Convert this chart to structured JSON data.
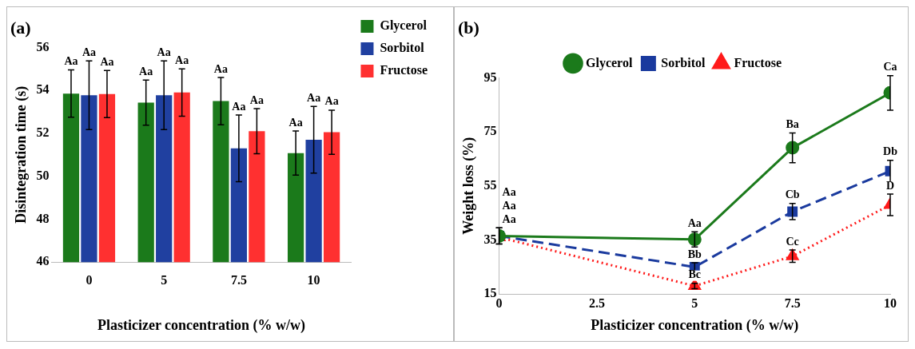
{
  "chart_data": [
    {
      "type": "bar",
      "title": "(a)",
      "xlabel": "Plasticizer concentration (% w/w)",
      "ylabel": "Disintegration time (s)",
      "categories": [
        "0",
        "5",
        "7.5",
        "10"
      ],
      "ylim": [
        46,
        56
      ],
      "yticks": [
        46,
        48,
        50,
        52,
        54,
        56
      ],
      "legend": "top right",
      "series": [
        {
          "name": "Glycerol",
          "color": "#1b7a1b",
          "values": [
            53.85,
            53.43,
            53.5,
            51.08
          ],
          "errors": [
            1.1,
            1.05,
            1.1,
            1.03
          ],
          "value_labels": [
            "Aa",
            "Aa",
            "Aa",
            "Aa"
          ]
        },
        {
          "name": "Sorbitol",
          "color": "#2040a0",
          "values": [
            53.77,
            53.77,
            51.3,
            51.7
          ],
          "errors": [
            1.6,
            1.6,
            1.55,
            1.55
          ]
        },
        {
          "name": "Fructose",
          "color": "#ff3030",
          "values": [
            53.83,
            53.9,
            52.1,
            52.05
          ],
          "errors": [
            1.1,
            1.1,
            1.05,
            1.03
          ],
          "value_labels": [
            "Aa",
            "Aa",
            "Aa",
            "Aa"
          ]
        }
      ],
      "annotations": [
        {
          "text": "Aa",
          "x": "0",
          "y": 55.37
        },
        {
          "text": "Aa",
          "x": "5",
          "y": 55.37
        },
        {
          "text": "Aa",
          "x": "7.5",
          "y": 52.85
        },
        {
          "text": "Aa",
          "x": "10",
          "y": 53.25
        }
      ]
    },
    {
      "type": "line",
      "title": "(b)",
      "xlabel": "Plasticizer concentration (% w/w)",
      "ylabel": "Weight loss (%)",
      "x": [
        0,
        5,
        7.5,
        10
      ],
      "xlim": [
        0,
        10
      ],
      "xticks": [
        0,
        2.5,
        5,
        7.5,
        10
      ],
      "ylim": [
        15,
        95
      ],
      "yticks": [
        15,
        35,
        55,
        75,
        95
      ],
      "legend": "top",
      "series": [
        {
          "name": "Glycerol",
          "color": "#1b7a1b",
          "marker": "circle",
          "line_style": "solid",
          "values": [
            36.5,
            35.2,
            69.1,
            89.4
          ],
          "errors": [
            3,
            2.8,
            5.5,
            6.4
          ],
          "value_labels": [
            "Aa",
            "Aa",
            "Ba",
            "Ca"
          ]
        },
        {
          "name": "Sorbitol",
          "color": "#1a3a9e",
          "marker": "square",
          "line_style": "dashed",
          "values": [
            36.5,
            25,
            45.5,
            60.5
          ],
          "errors": [
            3,
            1.6,
            3,
            4
          ],
          "value_labels": [
            "Aa",
            "Bb",
            "Cb",
            "Db"
          ]
        },
        {
          "name": "Fructose",
          "color": "#ff1a1a",
          "marker": "triangle",
          "line_style": "dotted",
          "values": [
            36,
            18,
            29,
            48
          ],
          "errors": [
            null,
            1,
            2.3,
            4
          ],
          "value_labels": [
            "Aa",
            "Bc",
            "Cc",
            "D"
          ]
        }
      ]
    }
  ]
}
